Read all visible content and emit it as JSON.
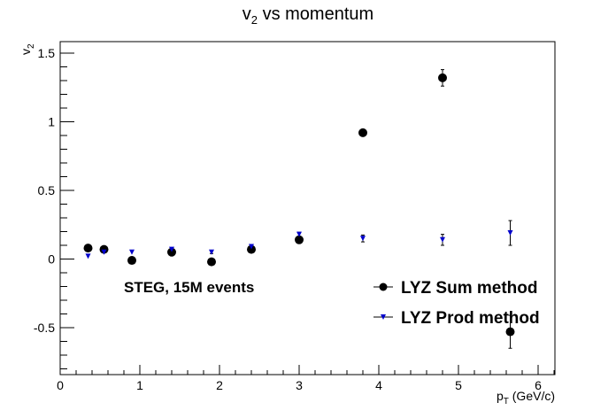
{
  "chart_data": {
    "type": "scatter",
    "title": "v",
    "title_sub": "2",
    "title_rest": " vs momentum",
    "ylabel": "v",
    "ylabel_sub": "2",
    "xlabel": "p",
    "xlabel_sub": "T",
    "xlabel_rest": " (GeV/c)",
    "xlim": [
      0,
      6.2
    ],
    "ylim": [
      -0.83,
      1.58
    ],
    "x_ticks": [
      "0",
      "1",
      "2",
      "3",
      "4",
      "5",
      "6"
    ],
    "y_ticks": [
      "-0.5",
      "0",
      "0.5",
      "1",
      "1.5"
    ],
    "annotation": "STEG, 15M events",
    "grid": false,
    "legend_position": "bottom-right",
    "series": [
      {
        "name": "LYZ Sum method",
        "color": "#000000",
        "marker": "circle",
        "points": [
          {
            "x": 0.35,
            "y": 0.08,
            "err": 0.01
          },
          {
            "x": 0.55,
            "y": 0.07,
            "err": 0.01
          },
          {
            "x": 0.9,
            "y": -0.01,
            "err": 0.01
          },
          {
            "x": 1.4,
            "y": 0.05,
            "err": 0.01
          },
          {
            "x": 1.9,
            "y": -0.02,
            "err": 0.01
          },
          {
            "x": 2.4,
            "y": 0.07,
            "err": 0.01
          },
          {
            "x": 3.0,
            "y": 0.14,
            "err": 0.01
          },
          {
            "x": 3.8,
            "y": 0.92,
            "err": 0.02
          },
          {
            "x": 4.8,
            "y": 1.32,
            "err": 0.06
          },
          {
            "x": 5.65,
            "y": -0.53,
            "err": 0.12
          }
        ]
      },
      {
        "name": "LYZ Prod method",
        "color": "#0000cc",
        "marker": "triangle-down",
        "points": [
          {
            "x": 0.35,
            "y": 0.02,
            "err": 0.005
          },
          {
            "x": 0.55,
            "y": 0.05,
            "err": 0.005
          },
          {
            "x": 0.9,
            "y": 0.05,
            "err": 0.005
          },
          {
            "x": 1.4,
            "y": 0.07,
            "err": 0.01
          },
          {
            "x": 1.9,
            "y": 0.05,
            "err": 0.01
          },
          {
            "x": 2.4,
            "y": 0.09,
            "err": 0.01
          },
          {
            "x": 3.0,
            "y": 0.18,
            "err": 0.015
          },
          {
            "x": 3.8,
            "y": 0.15,
            "err": 0.025
          },
          {
            "x": 4.8,
            "y": 0.14,
            "err": 0.04
          },
          {
            "x": 5.65,
            "y": 0.19,
            "err": 0.09
          }
        ]
      }
    ]
  }
}
